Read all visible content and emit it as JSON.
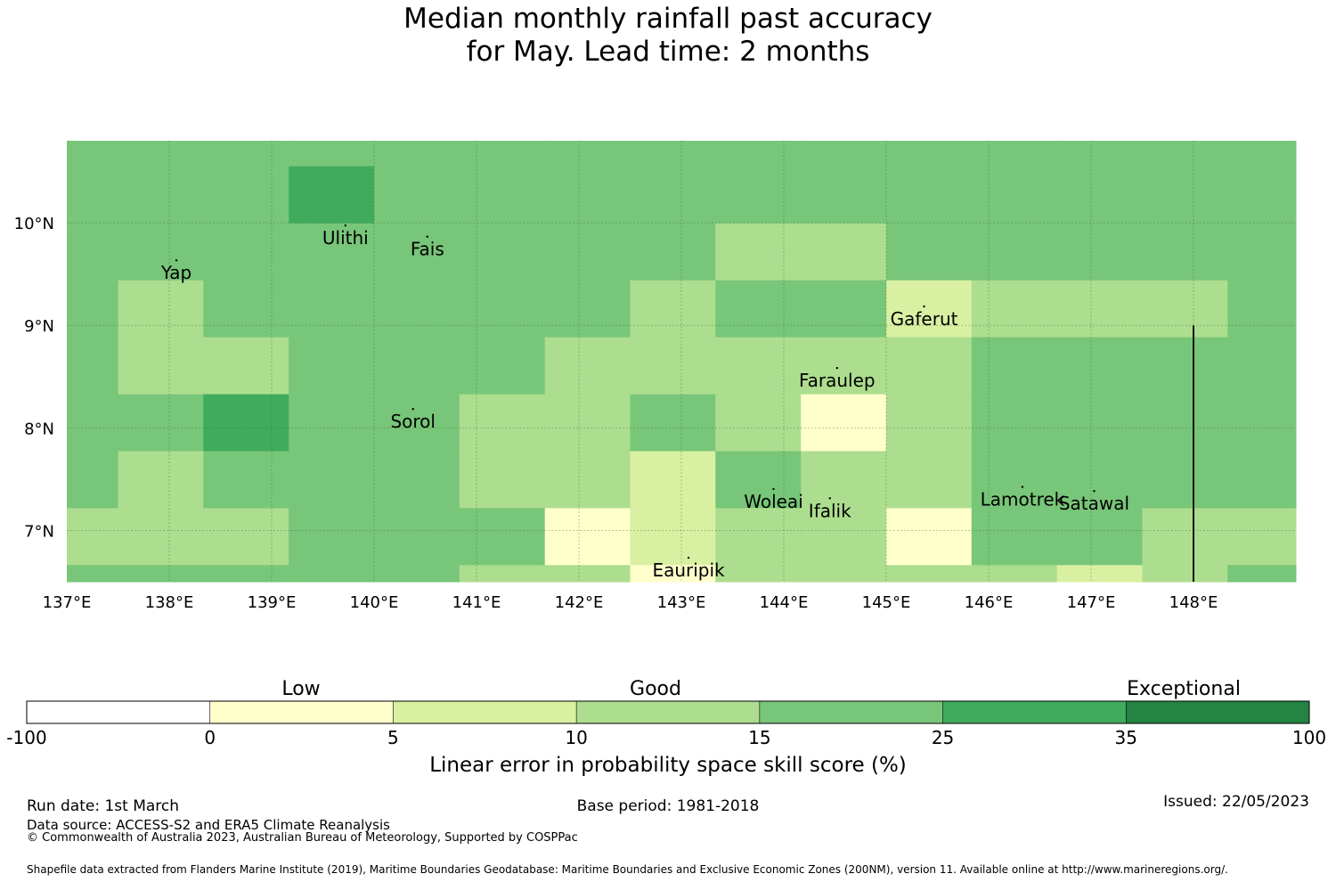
{
  "title": {
    "line1": "Median monthly rainfall past accuracy",
    "line2": "for May. Lead time: 2 months"
  },
  "map": {
    "lon_range": [
      137.0,
      149.0
    ],
    "lat_range": [
      6.5,
      10.8
    ],
    "grid_lons": [
      138,
      139,
      140,
      141,
      142,
      143,
      144,
      145,
      146,
      147,
      148
    ],
    "grid_lats": [
      7,
      8,
      9,
      10
    ],
    "lon_ticks": [
      "137°E",
      "138°E",
      "139°E",
      "140°E",
      "141°E",
      "142°E",
      "143°E",
      "144°E",
      "145°E",
      "146°E",
      "147°E",
      "148°E"
    ],
    "lat_ticks": [
      "7°N",
      "8°N",
      "9°N",
      "10°N"
    ],
    "cell_lon_edges": [
      137.0,
      137.5,
      138.333,
      139.167,
      140.0,
      140.833,
      141.667,
      142.5,
      143.333,
      144.167,
      145.0,
      145.833,
      146.667,
      147.5,
      148.333,
      149.0
    ],
    "cell_lat_edges": [
      6.5,
      6.667,
      7.222,
      7.778,
      8.333,
      8.889,
      9.444,
      10.0,
      10.556,
      10.8
    ],
    "skill_rows": [
      [
        15,
        15,
        15,
        15,
        15,
        10,
        10,
        0,
        10,
        10,
        10,
        10,
        5,
        10,
        15
      ],
      [
        10,
        10,
        10,
        15,
        15,
        15,
        0,
        5,
        10,
        10,
        0,
        15,
        15,
        10,
        10
      ],
      [
        15,
        10,
        15,
        15,
        15,
        10,
        10,
        5,
        15,
        10,
        10,
        15,
        15,
        15,
        15
      ],
      [
        15,
        15,
        25,
        15,
        15,
        10,
        10,
        15,
        10,
        0,
        10,
        15,
        15,
        15,
        15
      ],
      [
        15,
        10,
        10,
        15,
        15,
        15,
        10,
        10,
        10,
        10,
        10,
        15,
        15,
        15,
        15
      ],
      [
        15,
        10,
        15,
        15,
        15,
        15,
        15,
        10,
        15,
        15,
        5,
        10,
        10,
        10,
        15
      ],
      [
        15,
        15,
        15,
        15,
        15,
        15,
        15,
        15,
        10,
        10,
        15,
        15,
        15,
        15,
        15
      ],
      [
        15,
        15,
        15,
        25,
        15,
        15,
        15,
        15,
        15,
        15,
        15,
        15,
        15,
        15,
        15
      ],
      [
        15,
        15,
        15,
        15,
        15,
        15,
        15,
        15,
        15,
        15,
        15,
        15,
        15,
        15,
        15
      ]
    ],
    "places": [
      {
        "name": "Yap",
        "lon": 138.07,
        "lat": 9.53
      },
      {
        "name": "Ulithi",
        "lon": 139.72,
        "lat": 9.87
      },
      {
        "name": "Fais",
        "lon": 140.52,
        "lat": 9.76
      },
      {
        "name": "Gaferut",
        "lon": 145.37,
        "lat": 9.08
      },
      {
        "name": "Faraulep",
        "lon": 144.52,
        "lat": 8.48
      },
      {
        "name": "Sorol",
        "lon": 140.38,
        "lat": 8.08
      },
      {
        "name": "Woleai",
        "lon": 143.9,
        "lat": 7.3
      },
      {
        "name": "Ifalik",
        "lon": 144.45,
        "lat": 7.21
      },
      {
        "name": "Lamotrek",
        "lon": 146.33,
        "lat": 7.32
      },
      {
        "name": "Satawal",
        "lon": 147.03,
        "lat": 7.28
      },
      {
        "name": "Eauripik",
        "lon": 143.07,
        "lat": 6.63
      }
    ]
  },
  "colorbar": {
    "boundaries": [
      "-100",
      "0",
      "5",
      "10",
      "15",
      "25",
      "35",
      "100"
    ],
    "colors": [
      "#ffffff",
      "#ffffcc",
      "#d9f0a3",
      "#addd8e",
      "#78c679",
      "#41ab5d",
      "#238443"
    ],
    "category_labels": [
      "Low",
      "Good",
      "Exceptional"
    ],
    "axis_label": "Linear error in probability space skill score (%)"
  },
  "footer": {
    "run_date": "Run date: 1st March",
    "base_period": "Base period: 1981-2018",
    "issued": "Issued: 22/05/2023",
    "data_source": "Data source: ACCESS-S2 and ERA5 Climate Reanalysis",
    "copyright": "© Commonwealth of Australia 2023, Australian Bureau of Meteorology, Supported by COSPPac",
    "shapefile": "Shapefile data extracted from Flanders Marine Institute (2019), Maritime Boundaries Geodatabase: Maritime Boundaries and Exclusive Economic Zones (200NM), version 11. Available online at http://www.marineregions.org/."
  }
}
